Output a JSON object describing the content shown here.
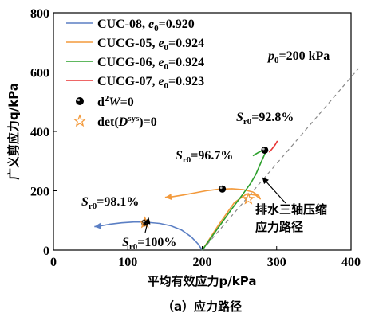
{
  "chart_data": {
    "type": "line",
    "caption": "（a）应力路径",
    "xlabel": "平均有效应力p/kPa",
    "ylabel": "广义剪应力q/kPa",
    "xlim": [
      0,
      400
    ],
    "ylim": [
      0,
      800
    ],
    "xticks": [
      0,
      100,
      200,
      300,
      400
    ],
    "yticks": [
      0,
      200,
      400,
      600,
      800
    ],
    "grid": false,
    "legend_position": "top-left",
    "series": [
      {
        "name": "CUC-08, e0=0.920",
        "name_main": "CUC-08, ",
        "name_var": "e",
        "name_sub": "0",
        "name_value": "=0.920",
        "color": "#5b7fc4",
        "x": [
          200,
          194,
          185,
          172,
          158,
          143,
          125,
          110,
          92,
          75,
          62,
          55
        ],
        "y": [
          0,
          22,
          45,
          68,
          82,
          90,
          94,
          95,
          92,
          87,
          81,
          79
        ]
      },
      {
        "name": "CUCG-05, e0=0.924",
        "name_main": "CUCG-05, ",
        "name_var": "e",
        "name_sub": "0",
        "name_value": "=0.924",
        "color": "#f39a3c",
        "x": [
          200,
          222,
          243,
          260,
          272,
          278,
          276,
          268,
          255,
          240,
          222,
          205,
          190,
          175,
          160,
          150
        ],
        "y": [
          0,
          85,
          160,
          190,
          185,
          173,
          183,
          196,
          204,
          207,
          205,
          200,
          193,
          186,
          180,
          178
        ]
      },
      {
        "name": "CUCG-06, e0=0.924",
        "name_main": "CUCG-06, ",
        "name_var": "e",
        "name_sub": "0",
        "name_value": "=0.924",
        "color": "#2ca02c",
        "x": [
          200,
          220,
          240,
          255,
          265,
          272,
          278,
          283,
          286,
          283,
          276,
          268
        ],
        "y": [
          0,
          70,
          140,
          190,
          225,
          255,
          290,
          318,
          336,
          338,
          330,
          318
        ]
      },
      {
        "name": "CUCG-07, e0=0.923",
        "name_main": "CUCG-07, ",
        "name_var": "e",
        "name_sub": "0",
        "name_value": "=0.923",
        "color": "#e83434",
        "x": [
          290,
          294,
          298,
          301
        ],
        "y": [
          330,
          342,
          355,
          368
        ]
      }
    ],
    "markers": {
      "d2W": {
        "label_prefix": "d",
        "label_sup": "2",
        "label_var": "W",
        "label_suffix": "=0",
        "color": "#000000",
        "points": [
          [
            123,
            92
          ],
          [
            227,
            206
          ],
          [
            284,
            337
          ]
        ]
      },
      "det": {
        "label_prefix": "det(",
        "label_var": "D",
        "label_sup": "sys",
        "label_suffix": ")=0",
        "color": "#f39a3c",
        "points": [
          [
            123,
            92
          ],
          [
            262,
            172
          ]
        ]
      }
    },
    "reference_line": {
      "color": "#888888",
      "x": [
        200,
        410
      ],
      "y": [
        0,
        630
      ],
      "label_var": "p",
      "label_sub": "0",
      "label_value": "=200 kPa"
    },
    "annotations": [
      {
        "var": "S",
        "sub": "r0",
        "value": "=100%"
      },
      {
        "var": "S",
        "sub": "r0",
        "value": "=98.1%"
      },
      {
        "var": "S",
        "sub": "r0",
        "value": "=96.7%"
      },
      {
        "var": "S",
        "sub": "r0",
        "value": "=92.8%"
      },
      {
        "line1": "排水三轴压缩",
        "line2": "应力路径"
      }
    ]
  }
}
